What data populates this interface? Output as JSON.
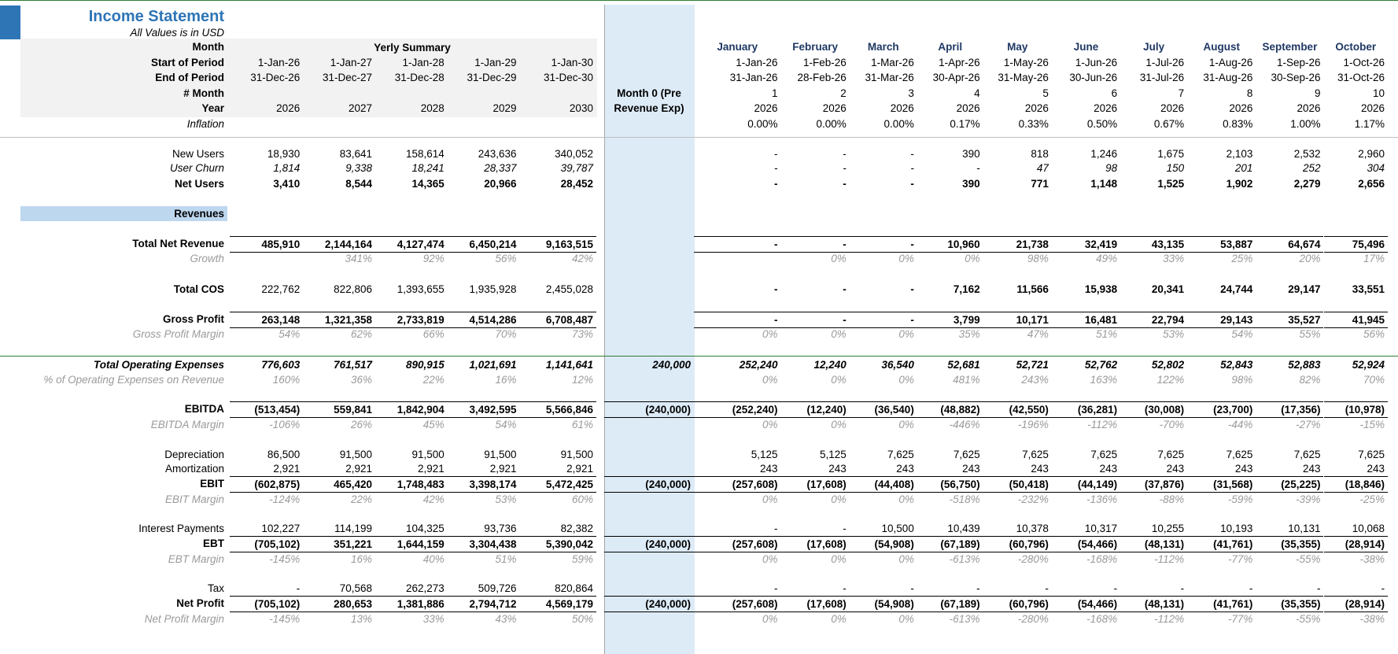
{
  "header": {
    "title": "Income Statement",
    "subtitle": "All Values is in USD",
    "yearly_summary": "Yerly Summary",
    "month0": "Month 0 (Pre Revenue Exp)"
  },
  "rows": [
    {
      "label": "Month",
      "monthly": [
        "January",
        "February",
        "March",
        "April",
        "May",
        "June",
        "July",
        "August",
        "September",
        "October"
      ]
    },
    {
      "label": "Start of Period",
      "yearly": [
        "1-Jan-26",
        "1-Jan-27",
        "1-Jan-28",
        "1-Jan-29",
        "1-Jan-30"
      ],
      "monthly": [
        "1-Jan-26",
        "1-Feb-26",
        "1-Mar-26",
        "1-Apr-26",
        "1-May-26",
        "1-Jun-26",
        "1-Jul-26",
        "1-Aug-26",
        "1-Sep-26",
        "1-Oct-26"
      ]
    },
    {
      "label": "End of Period",
      "yearly": [
        "31-Dec-26",
        "31-Dec-27",
        "31-Dec-28",
        "31-Dec-29",
        "31-Dec-30"
      ],
      "monthly": [
        "31-Jan-26",
        "28-Feb-26",
        "31-Mar-26",
        "30-Apr-26",
        "31-May-26",
        "30-Jun-26",
        "31-Jul-26",
        "31-Aug-26",
        "30-Sep-26",
        "31-Oct-26"
      ]
    },
    {
      "label": "# Month",
      "monthly": [
        "1",
        "2",
        "3",
        "4",
        "5",
        "6",
        "7",
        "8",
        "9",
        "10"
      ]
    },
    {
      "label": "Year",
      "yearly": [
        "2026",
        "2027",
        "2028",
        "2029",
        "2030"
      ],
      "monthly": [
        "2026",
        "2026",
        "2026",
        "2026",
        "2026",
        "2026",
        "2026",
        "2026",
        "2026",
        "2026"
      ]
    },
    {
      "label": "Inflation",
      "monthly": [
        "0.00%",
        "0.00%",
        "0.00%",
        "0.17%",
        "0.33%",
        "0.50%",
        "0.67%",
        "0.83%",
        "1.00%",
        "1.17%"
      ]
    },
    {
      "label": "New Users",
      "yearly": [
        "18,930",
        "83,641",
        "158,614",
        "243,636",
        "340,052"
      ],
      "monthly": [
        "-",
        "-",
        "-",
        "390",
        "818",
        "1,246",
        "1,675",
        "2,103",
        "2,532",
        "2,960"
      ]
    },
    {
      "label": "User Churn",
      "yearly": [
        "1,814",
        "9,338",
        "18,241",
        "28,337",
        "39,787"
      ],
      "monthly": [
        "-",
        "-",
        "-",
        "-",
        "47",
        "98",
        "150",
        "201",
        "252",
        "304"
      ]
    },
    {
      "label": "Net Users",
      "yearly": [
        "3,410",
        "8,544",
        "14,365",
        "20,966",
        "28,452"
      ],
      "monthly": [
        "-",
        "-",
        "-",
        "390",
        "771",
        "1,148",
        "1,525",
        "1,902",
        "2,279",
        "2,656"
      ]
    },
    {
      "label": "Revenues"
    },
    {
      "label": "Total Net Revenue",
      "yearly": [
        "485,910",
        "2,144,164",
        "4,127,474",
        "6,450,214",
        "9,163,515"
      ],
      "monthly": [
        "-",
        "-",
        "-",
        "10,960",
        "21,738",
        "32,419",
        "43,135",
        "53,887",
        "64,674",
        "75,496"
      ]
    },
    {
      "label": "Growth",
      "yearly": [
        null,
        "341%",
        "92%",
        "56%",
        "42%"
      ],
      "monthly": [
        null,
        "0%",
        "0%",
        "0%",
        "98%",
        "49%",
        "33%",
        "25%",
        "20%",
        "17%"
      ]
    },
    {
      "label": "Total COS",
      "yearly": [
        "222,762",
        "822,806",
        "1,393,655",
        "1,935,928",
        "2,455,028"
      ],
      "monthly": [
        "-",
        "-",
        "-",
        "7,162",
        "11,566",
        "15,938",
        "20,341",
        "24,744",
        "29,147",
        "33,551"
      ]
    },
    {
      "label": "Gross Profit",
      "yearly": [
        "263,148",
        "1,321,358",
        "2,733,819",
        "4,514,286",
        "6,708,487"
      ],
      "monthly": [
        "-",
        "-",
        "-",
        "3,799",
        "10,171",
        "16,481",
        "22,794",
        "29,143",
        "35,527",
        "41,945"
      ]
    },
    {
      "label": "Gross Profit Margin",
      "yearly": [
        "54%",
        "62%",
        "66%",
        "70%",
        "73%"
      ],
      "monthly": [
        "0%",
        "0%",
        "0%",
        "35%",
        "47%",
        "51%",
        "53%",
        "54%",
        "55%",
        "56%"
      ]
    },
    {
      "label": "Total Operating Expenses",
      "yearly": [
        "776,603",
        "761,517",
        "890,915",
        "1,021,691",
        "1,141,641"
      ],
      "month0": "240,000",
      "monthly": [
        "252,240",
        "12,240",
        "36,540",
        "52,681",
        "52,721",
        "52,762",
        "52,802",
        "52,843",
        "52,883",
        "52,924"
      ]
    },
    {
      "label": "% of Operating Expenses on Revenue",
      "yearly": [
        "160%",
        "36%",
        "22%",
        "16%",
        "12%"
      ],
      "monthly": [
        "0%",
        "0%",
        "0%",
        "481%",
        "243%",
        "163%",
        "122%",
        "98%",
        "82%",
        "70%"
      ]
    },
    {
      "label": "EBITDA",
      "yearly": [
        "(513,454)",
        "559,841",
        "1,842,904",
        "3,492,595",
        "5,566,846"
      ],
      "month0": "(240,000)",
      "monthly": [
        "(252,240)",
        "(12,240)",
        "(36,540)",
        "(48,882)",
        "(42,550)",
        "(36,281)",
        "(30,008)",
        "(23,700)",
        "(17,356)",
        "(10,978)"
      ]
    },
    {
      "label": "EBITDA Margin",
      "yearly": [
        "-106%",
        "26%",
        "45%",
        "54%",
        "61%"
      ],
      "monthly": [
        "0%",
        "0%",
        "0%",
        "-446%",
        "-196%",
        "-112%",
        "-70%",
        "-44%",
        "-27%",
        "-15%"
      ]
    },
    {
      "label": "Depreciation",
      "yearly": [
        "86,500",
        "91,500",
        "91,500",
        "91,500",
        "91,500"
      ],
      "monthly": [
        "5,125",
        "5,125",
        "7,625",
        "7,625",
        "7,625",
        "7,625",
        "7,625",
        "7,625",
        "7,625",
        "7,625"
      ]
    },
    {
      "label": "Amortization",
      "yearly": [
        "2,921",
        "2,921",
        "2,921",
        "2,921",
        "2,921"
      ],
      "monthly": [
        "243",
        "243",
        "243",
        "243",
        "243",
        "243",
        "243",
        "243",
        "243",
        "243"
      ]
    },
    {
      "label": "EBIT",
      "yearly": [
        "(602,875)",
        "465,420",
        "1,748,483",
        "3,398,174",
        "5,472,425"
      ],
      "month0": "(240,000)",
      "monthly": [
        "(257,608)",
        "(17,608)",
        "(44,408)",
        "(56,750)",
        "(50,418)",
        "(44,149)",
        "(37,876)",
        "(31,568)",
        "(25,225)",
        "(18,846)"
      ]
    },
    {
      "label": "EBIT Margin",
      "yearly": [
        "-124%",
        "22%",
        "42%",
        "53%",
        "60%"
      ],
      "monthly": [
        "0%",
        "0%",
        "0%",
        "-518%",
        "-232%",
        "-136%",
        "-88%",
        "-59%",
        "-39%",
        "-25%"
      ]
    },
    {
      "label": "Interest Payments",
      "yearly": [
        "102,227",
        "114,199",
        "104,325",
        "93,736",
        "82,382"
      ],
      "monthly": [
        "-",
        "-",
        "10,500",
        "10,439",
        "10,378",
        "10,317",
        "10,255",
        "10,193",
        "10,131",
        "10,068"
      ]
    },
    {
      "label": "EBT",
      "yearly": [
        "(705,102)",
        "351,221",
        "1,644,159",
        "3,304,438",
        "5,390,042"
      ],
      "month0": "(240,000)",
      "monthly": [
        "(257,608)",
        "(17,608)",
        "(54,908)",
        "(67,189)",
        "(60,796)",
        "(54,466)",
        "(48,131)",
        "(41,761)",
        "(35,355)",
        "(28,914)"
      ]
    },
    {
      "label": "EBT Margin",
      "yearly": [
        "-145%",
        "16%",
        "40%",
        "51%",
        "59%"
      ],
      "monthly": [
        "0%",
        "0%",
        "0%",
        "-613%",
        "-280%",
        "-168%",
        "-112%",
        "-77%",
        "-55%",
        "-38%"
      ]
    },
    {
      "label": "Tax",
      "yearly": [
        "-",
        "70,568",
        "262,273",
        "509,726",
        "820,864"
      ],
      "monthly": [
        "-",
        "-",
        "-",
        "-",
        "-",
        "-",
        "-",
        "-",
        "-",
        "-"
      ]
    },
    {
      "label": "Net Profit",
      "yearly": [
        "(705,102)",
        "280,653",
        "1,381,886",
        "2,794,712",
        "4,569,179"
      ],
      "month0": "(240,000)",
      "monthly": [
        "(257,608)",
        "(17,608)",
        "(54,908)",
        "(67,189)",
        "(60,796)",
        "(54,466)",
        "(48,131)",
        "(41,761)",
        "(35,355)",
        "(28,914)"
      ]
    },
    {
      "label": "Net Profit Margin",
      "yearly": [
        "-145%",
        "13%",
        "33%",
        "43%",
        "50%"
      ],
      "monthly": [
        "0%",
        "0%",
        "0%",
        "-613%",
        "-280%",
        "-168%",
        "-112%",
        "-77%",
        "-55%",
        "-38%"
      ]
    }
  ]
}
